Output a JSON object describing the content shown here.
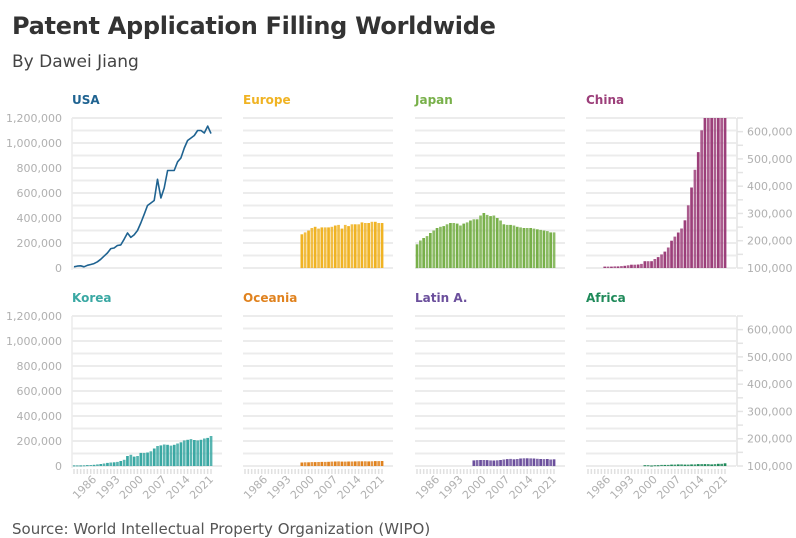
{
  "title": "Patent Application Filling Worldwide",
  "subtitle": "By Dawei Jiang",
  "source": "Source: World Intellectual Property Organization (WIPO)",
  "chart_data": {
    "type": "bar",
    "years": [
      1980,
      1981,
      1982,
      1983,
      1984,
      1985,
      1986,
      1987,
      1988,
      1989,
      1990,
      1991,
      1992,
      1993,
      1994,
      1995,
      1996,
      1997,
      1998,
      1999,
      2000,
      2001,
      2002,
      2003,
      2004,
      2005,
      2006,
      2007,
      2008,
      2009,
      2010,
      2011,
      2012,
      2013,
      2014,
      2015,
      2016,
      2017,
      2018,
      2019,
      2020,
      2021
    ],
    "x_ticks": [
      "1986",
      "1993",
      "2000",
      "2007",
      "2014",
      "2021"
    ],
    "left_axis": {
      "range": [
        0,
        1200000
      ],
      "ticks": [
        "0",
        "200,000",
        "400,000",
        "600,000",
        "800,000",
        "1,000,000",
        "1,200,000"
      ]
    },
    "right_axis": {
      "range": [
        100000,
        650000
      ],
      "ticks": [
        "100,000",
        "200,000",
        "300,000",
        "400,000",
        "500,000",
        "600,000"
      ]
    },
    "panels": [
      {
        "name": "USA",
        "color": "#1f6391",
        "mark": "line",
        "axis": "left",
        "start_year": 1980,
        "values": [
          10000,
          15000,
          18000,
          10000,
          22000,
          28000,
          35000,
          50000,
          70000,
          95000,
          120000,
          155000,
          160000,
          180000,
          185000,
          230000,
          280000,
          245000,
          265000,
          300000,
          360000,
          430000,
          500000,
          520000,
          540000,
          710000,
          560000,
          640000,
          780000,
          780000,
          780000,
          850000,
          880000,
          960000,
          1020000,
          1040000,
          1060000,
          1100000,
          1100000,
          1080000,
          1135000,
          1075000
        ]
      },
      {
        "name": "Europe",
        "color": "#f0b323",
        "mark": "bar",
        "axis": "left",
        "start_year": 1997,
        "values": [
          270000,
          285000,
          300000,
          320000,
          330000,
          315000,
          325000,
          325000,
          325000,
          330000,
          340000,
          345000,
          315000,
          345000,
          335000,
          350000,
          350000,
          350000,
          365000,
          360000,
          360000,
          370000,
          370000,
          360000,
          360000
        ]
      },
      {
        "name": "Japan",
        "color": "#78b04a",
        "mark": "bar",
        "axis": "left",
        "start_year": 1980,
        "values": [
          190000,
          220000,
          240000,
          255000,
          280000,
          300000,
          320000,
          330000,
          335000,
          350000,
          360000,
          360000,
          355000,
          340000,
          355000,
          365000,
          380000,
          390000,
          390000,
          420000,
          440000,
          425000,
          415000,
          420000,
          400000,
          380000,
          350000,
          345000,
          345000,
          340000,
          330000,
          325000,
          320000,
          320000,
          320000,
          315000,
          310000,
          305000,
          300000,
          295000,
          285000,
          285000
        ]
      },
      {
        "name": "China",
        "color": "#9c3f7a",
        "mark": "bar",
        "axis": "right",
        "start_year": 1985,
        "values": [
          105000,
          105000,
          105000,
          106000,
          106000,
          107000,
          108000,
          110000,
          112000,
          112000,
          113000,
          115000,
          125000,
          125000,
          125000,
          133000,
          140000,
          150000,
          160000,
          175000,
          200000,
          215000,
          230000,
          245000,
          275000,
          330000,
          395000,
          460000,
          525000,
          605000,
          650000,
          650000,
          650000,
          650000,
          650000,
          650000,
          650000
        ]
      },
      {
        "name": "Korea",
        "color": "#3aa8a3",
        "mark": "bar",
        "axis": "left",
        "start_year": 1980,
        "values": [
          5000,
          5000,
          5000,
          6000,
          7000,
          8000,
          10000,
          13000,
          16000,
          20000,
          25000,
          28000,
          30000,
          33000,
          40000,
          50000,
          80000,
          90000,
          75000,
          80000,
          105000,
          105000,
          108000,
          118000,
          140000,
          160000,
          165000,
          172000,
          170000,
          163000,
          170000,
          180000,
          190000,
          205000,
          210000,
          215000,
          208000,
          205000,
          210000,
          220000,
          225000,
          240000
        ]
      },
      {
        "name": "Oceania",
        "color": "#e0821e",
        "mark": "bar",
        "axis": "left",
        "start_year": 1997,
        "values": [
          28000,
          30000,
          30000,
          31000,
          31000,
          32000,
          33000,
          33000,
          34000,
          35000,
          36000,
          37000,
          35000,
          35000,
          36000,
          36000,
          37000,
          38000,
          38000,
          38000,
          37000,
          38000,
          39000,
          39000,
          40000
        ]
      },
      {
        "name": "Latin A.",
        "color": "#6b4f9c",
        "mark": "bar",
        "axis": "left",
        "start_year": 1997,
        "values": [
          45000,
          47000,
          48000,
          48000,
          47000,
          45000,
          44000,
          46000,
          48000,
          52000,
          55000,
          57000,
          54000,
          56000,
          60000,
          62000,
          62000,
          61000,
          60000,
          58000,
          56000,
          55000,
          56000,
          52000,
          54000
        ]
      },
      {
        "name": "Africa",
        "color": "#1f8a5a",
        "mark": "bar",
        "axis": "right",
        "start_year": 1997,
        "values": [
          103000,
          103000,
          102000,
          103000,
          103000,
          104000,
          104000,
          104000,
          105000,
          105000,
          106000,
          106000,
          105000,
          105000,
          106000,
          106000,
          107000,
          107000,
          107000,
          107000,
          106000,
          107000,
          108000,
          108000,
          110000
        ]
      }
    ]
  }
}
